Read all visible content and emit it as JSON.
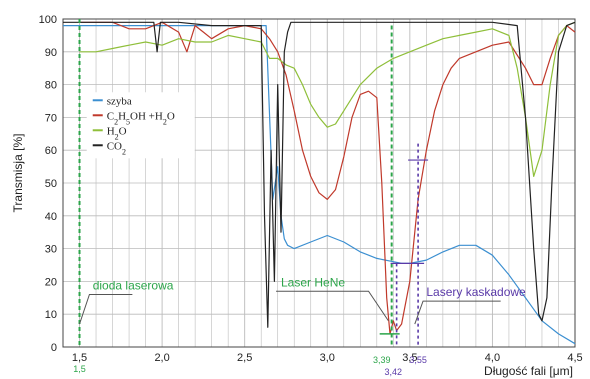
{
  "chart_data": {
    "type": "line",
    "xlabel": "Długość fali [μm]",
    "ylabel": "Transmisja [%]",
    "xlim": [
      1.4,
      4.5
    ],
    "ylim": [
      0,
      100
    ],
    "xticks": [
      "1,5",
      "2,0",
      "2,5",
      "3,0",
      "3,5",
      "4,0",
      "4,5"
    ],
    "yticks": [
      "0",
      "10",
      "20",
      "30",
      "40",
      "50",
      "60",
      "70",
      "80",
      "90",
      "100"
    ],
    "grid": true,
    "legend": {
      "placement": "left-middle",
      "items": [
        {
          "label": "szyba",
          "color": "#3b8fd1"
        },
        {
          "label": "C2H5OH +H2O",
          "color": "#c0392b"
        },
        {
          "label": "H2O",
          "color": "#8fbf3a"
        },
        {
          "label": "CO2",
          "color": "#222222"
        }
      ]
    },
    "series": [
      {
        "name": "szyba",
        "color": "#3b8fd1",
        "x": [
          1.4,
          2.5,
          2.63,
          2.67,
          2.7,
          2.72,
          2.74,
          2.76,
          2.8,
          2.9,
          3.0,
          3.1,
          3.2,
          3.3,
          3.4,
          3.45,
          3.5,
          3.6,
          3.7,
          3.8,
          3.9,
          4.0,
          4.1,
          4.2,
          4.3,
          4.4,
          4.5
        ],
        "y": [
          98,
          98,
          98,
          45,
          55,
          40,
          33,
          31,
          30,
          32,
          34,
          32,
          29,
          27,
          26,
          25.5,
          25.5,
          26.5,
          29,
          31,
          31,
          28,
          22,
          15,
          8,
          4,
          1
        ]
      },
      {
        "name": "C2H5OH +H2O",
        "color": "#c0392b",
        "x": [
          1.5,
          1.6,
          1.7,
          1.8,
          1.9,
          2.0,
          2.1,
          2.15,
          2.2,
          2.25,
          2.3,
          2.4,
          2.5,
          2.6,
          2.65,
          2.7,
          2.75,
          2.8,
          2.85,
          2.9,
          2.95,
          3.0,
          3.05,
          3.1,
          3.15,
          3.2,
          3.25,
          3.3,
          3.33,
          3.36,
          3.38,
          3.4,
          3.42,
          3.45,
          3.5,
          3.55,
          3.6,
          3.65,
          3.7,
          3.75,
          3.8,
          3.9,
          4.0,
          4.1,
          4.2,
          4.25,
          4.3,
          4.35,
          4.4,
          4.45,
          4.5
        ],
        "y": [
          99,
          99,
          99,
          97,
          97,
          99,
          96,
          90,
          98,
          96,
          94,
          97,
          98,
          97,
          94,
          90,
          83,
          72,
          60,
          52,
          47,
          45,
          48,
          58,
          70,
          77,
          78,
          76,
          50,
          15,
          4,
          8,
          5,
          7,
          20,
          45,
          60,
          72,
          80,
          85,
          88,
          90,
          92,
          93,
          85,
          80,
          80,
          88,
          95,
          98,
          96
        ]
      },
      {
        "name": "H2O",
        "color": "#8fbf3a",
        "x": [
          1.5,
          1.6,
          1.7,
          1.8,
          1.9,
          2.0,
          2.1,
          2.2,
          2.3,
          2.4,
          2.5,
          2.6,
          2.65,
          2.7,
          2.75,
          2.8,
          2.85,
          2.9,
          2.95,
          3.0,
          3.05,
          3.1,
          3.2,
          3.3,
          3.4,
          3.5,
          3.6,
          3.7,
          3.8,
          3.9,
          4.0,
          4.1,
          4.15,
          4.2,
          4.25,
          4.3,
          4.35,
          4.4,
          4.45,
          4.5
        ],
        "y": [
          90,
          90,
          91,
          92,
          93,
          92,
          94,
          93,
          93,
          95,
          94,
          93,
          88,
          88,
          86,
          85,
          80,
          74,
          70,
          67,
          68,
          72,
          80,
          85,
          88,
          90,
          92,
          94,
          95,
          96,
          97,
          95,
          85,
          70,
          52,
          60,
          80,
          95,
          98,
          99
        ]
      },
      {
        "name": "CO2",
        "color": "#222222",
        "x": [
          1.4,
          1.6,
          1.8,
          1.95,
          1.97,
          1.99,
          2.1,
          2.3,
          2.5,
          2.6,
          2.62,
          2.64,
          2.66,
          2.68,
          2.7,
          2.72,
          2.74,
          2.76,
          2.78,
          2.8,
          3.0,
          3.5,
          4.0,
          4.15,
          4.2,
          4.25,
          4.28,
          4.3,
          4.33,
          4.36,
          4.4,
          4.45,
          4.5
        ],
        "y": [
          99,
          99,
          99,
          99,
          90,
          99,
          99,
          98,
          98,
          98,
          40,
          6,
          60,
          20,
          80,
          35,
          90,
          96,
          99,
          99,
          99,
          99,
          99,
          98,
          70,
          30,
          10,
          8,
          15,
          50,
          90,
          98,
          99
        ]
      }
    ],
    "annotations": [
      {
        "text": "dioda laserowa",
        "color": "#2ca54a",
        "x": 1.5
      },
      {
        "text": "Laser HeNe",
        "color": "#2ca54a",
        "x": 3.39
      },
      {
        "text": "Lasery kaskadowe",
        "color": "#5a3aa8",
        "x": [
          3.42,
          3.55
        ]
      }
    ],
    "markers": [
      {
        "label": "1,5",
        "x": 1.5,
        "color": "#2ca54a"
      },
      {
        "label": "3,39",
        "x": 3.39,
        "color": "#2ca54a"
      },
      {
        "label": "3,42",
        "x": 3.42,
        "color": "#5a3aa8"
      },
      {
        "label": "3,55",
        "x": 3.55,
        "color": "#5a3aa8"
      }
    ]
  },
  "styles": {
    "grid_color": "#bbbbbb",
    "axis_color": "#444444",
    "laser_green": "#2ca54a",
    "laser_purple": "#5a3aa8"
  }
}
